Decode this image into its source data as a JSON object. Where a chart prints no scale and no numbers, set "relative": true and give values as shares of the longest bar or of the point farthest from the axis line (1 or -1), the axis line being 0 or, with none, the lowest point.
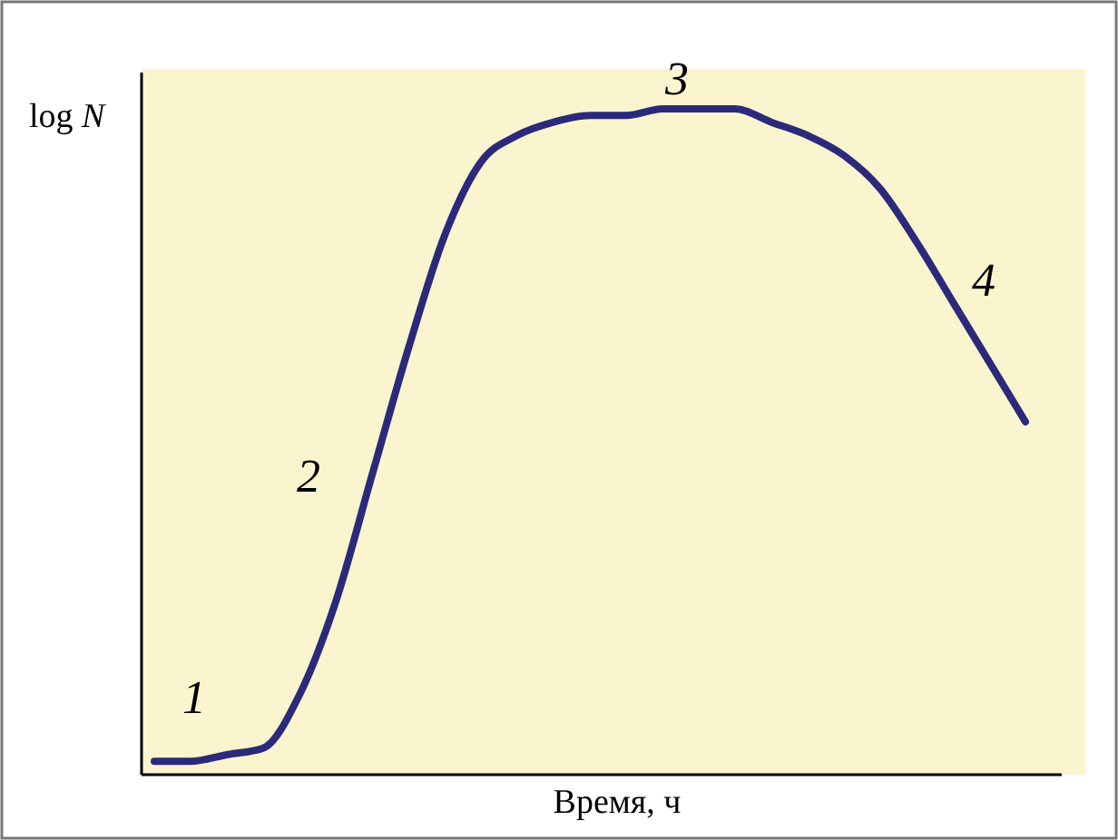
{
  "chart_data": {
    "type": "line",
    "relative": true,
    "xlabel": "Время, ч",
    "ylabel": "log N",
    "categories": [
      null,
      null,
      null,
      null,
      null,
      null,
      null,
      null,
      null,
      null,
      null,
      null,
      null,
      null,
      null,
      null,
      null,
      null,
      null,
      null,
      null,
      null,
      null,
      null,
      null
    ],
    "series": [
      {
        "color": "#2b2a7a",
        "values": [
          0.02,
          0.02,
          0.03,
          0.04,
          0.12,
          0.26,
          0.45,
          0.64,
          0.81,
          0.92,
          0.96,
          0.98,
          0.99,
          0.99,
          1.0,
          1.0,
          1.0,
          0.98,
          0.96,
          0.93,
          0.88,
          0.8,
          0.71,
          0.62,
          0.53
        ]
      }
    ],
    "annotations": [
      "1",
      "2",
      "3",
      "4"
    ],
    "marker": "none",
    "line_style": "solid"
  }
}
